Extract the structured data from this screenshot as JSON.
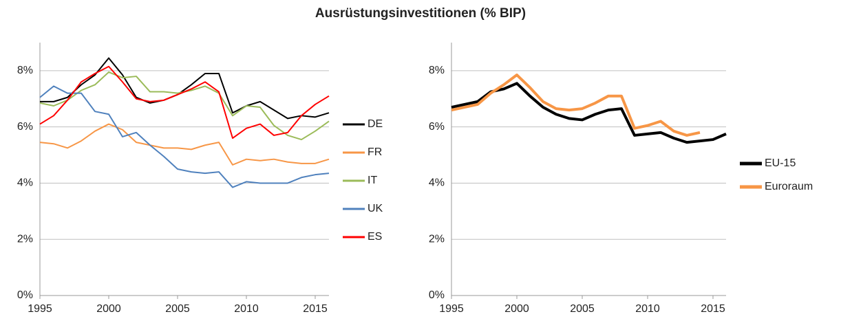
{
  "title": "Ausrüstungsinvestitionen (% BIP)",
  "chart_data": [
    {
      "type": "line",
      "x": [
        1995,
        1996,
        1997,
        1998,
        1999,
        2000,
        2001,
        2002,
        2003,
        2004,
        2005,
        2006,
        2007,
        2008,
        2009,
        2010,
        2011,
        2012,
        2013,
        2014,
        2015,
        2016
      ],
      "xlim": [
        1995,
        2016
      ],
      "xticks": [
        1995,
        2000,
        2005,
        2010,
        2015
      ],
      "ylim": [
        0,
        9
      ],
      "yticks": [
        {
          "value": 0,
          "label": "0%"
        },
        {
          "value": 2,
          "label": "2%"
        },
        {
          "value": 4,
          "label": "4%"
        },
        {
          "value": 6,
          "label": "6%"
        },
        {
          "value": 8,
          "label": "8%"
        }
      ],
      "grid": true,
      "legend": "right",
      "series": [
        {
          "name": "DE",
          "color": "#000000",
          "values": [
            6.9,
            6.9,
            7.05,
            7.5,
            7.85,
            8.45,
            7.85,
            7.05,
            6.85,
            6.95,
            7.15,
            7.5,
            7.9,
            7.9,
            6.5,
            6.75,
            6.9,
            6.6,
            6.3,
            6.4,
            6.35,
            6.5
          ]
        },
        {
          "name": "FR",
          "color": "#f79646",
          "values": [
            5.45,
            5.4,
            5.25,
            5.5,
            5.85,
            6.1,
            5.9,
            5.45,
            5.35,
            5.25,
            5.25,
            5.2,
            5.35,
            5.45,
            4.65,
            4.85,
            4.8,
            4.85,
            4.75,
            4.7,
            4.7,
            4.85
          ]
        },
        {
          "name": "IT",
          "color": "#9bbb59",
          "values": [
            6.85,
            6.75,
            6.95,
            7.3,
            7.5,
            7.95,
            7.75,
            7.8,
            7.25,
            7.25,
            7.2,
            7.3,
            7.45,
            7.2,
            6.4,
            6.75,
            6.7,
            6.05,
            5.7,
            5.55,
            5.85,
            6.2
          ]
        },
        {
          "name": "UK",
          "color": "#4f81bd",
          "values": [
            7.05,
            7.45,
            7.2,
            7.2,
            6.55,
            6.45,
            5.65,
            5.8,
            5.35,
            4.95,
            4.5,
            4.4,
            4.35,
            4.4,
            3.85,
            4.05,
            4.0,
            4.0,
            4.0,
            4.2,
            4.3,
            4.35
          ]
        },
        {
          "name": "ES",
          "color": "#ff0000",
          "values": [
            6.1,
            6.4,
            6.95,
            7.6,
            7.9,
            8.15,
            7.6,
            7.0,
            6.9,
            6.95,
            7.15,
            7.35,
            7.6,
            7.25,
            5.6,
            5.95,
            6.1,
            5.7,
            5.8,
            6.4,
            6.8,
            7.1
          ]
        }
      ]
    },
    {
      "type": "line",
      "x": [
        1995,
        1996,
        1997,
        1998,
        1999,
        2000,
        2001,
        2002,
        2003,
        2004,
        2005,
        2006,
        2007,
        2008,
        2009,
        2010,
        2011,
        2012,
        2013,
        2014,
        2015,
        2016
      ],
      "xlim": [
        1995,
        2016
      ],
      "xticks": [
        1995,
        2000,
        2005,
        2010,
        2015
      ],
      "ylim": [
        0,
        9
      ],
      "yticks": [
        {
          "value": 0,
          "label": "0%"
        },
        {
          "value": 2,
          "label": "2%"
        },
        {
          "value": 4,
          "label": "4%"
        },
        {
          "value": 6,
          "label": "6%"
        },
        {
          "value": 8,
          "label": "8%"
        }
      ],
      "grid": true,
      "legend": "right",
      "series": [
        {
          "name": "EU-15",
          "color": "#000000",
          "values": [
            6.7,
            6.8,
            6.9,
            7.25,
            7.35,
            7.55,
            7.1,
            6.7,
            6.45,
            6.3,
            6.25,
            6.45,
            6.6,
            6.65,
            5.7,
            5.75,
            5.8,
            5.6,
            5.45,
            5.5,
            5.55,
            5.75
          ]
        },
        {
          "name": "Euroraum",
          "color": "#f79646",
          "values": [
            6.6,
            6.7,
            6.8,
            7.2,
            7.5,
            7.85,
            7.4,
            6.9,
            6.65,
            6.6,
            6.65,
            6.85,
            7.1,
            7.1,
            5.95,
            6.05,
            6.2,
            5.85,
            5.7,
            5.8,
            null,
            null
          ]
        }
      ]
    }
  ]
}
